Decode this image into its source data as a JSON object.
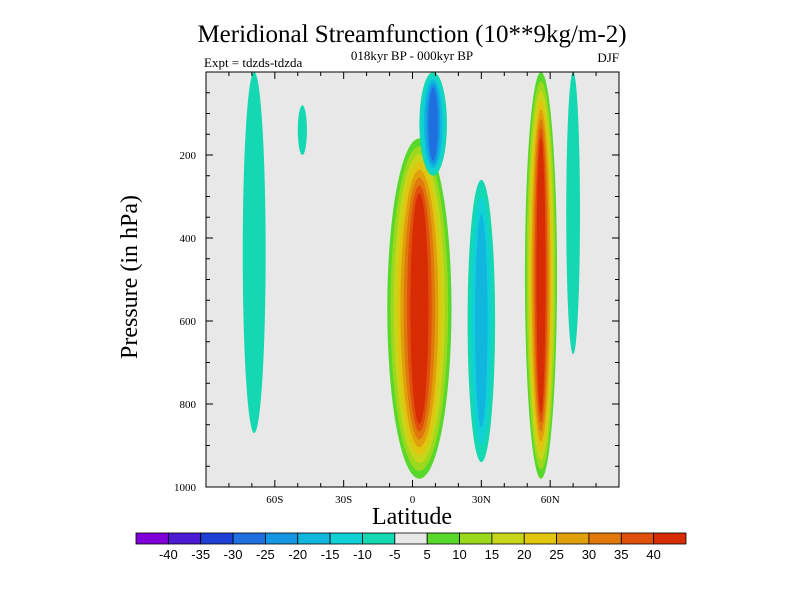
{
  "chart_data": {
    "type": "heatmap",
    "title": "Meridional Streamfunction (10**9kg/m-2)",
    "subtitle": "018kyr BP - 000kyr BP",
    "left_label": "Expt = tdzds-tdzda",
    "right_label": "DJF",
    "xlabel": "Latitude",
    "ylabel": "Pressure (in hPa)",
    "xlim": [
      -90,
      90
    ],
    "ylim": [
      0,
      1000
    ],
    "y_reversed": true,
    "x_ticks": [
      {
        "value": -60,
        "label": "60S"
      },
      {
        "value": -30,
        "label": "30S"
      },
      {
        "value": 0,
        "label": "0"
      },
      {
        "value": 30,
        "label": "30N"
      },
      {
        "value": 60,
        "label": "60N"
      }
    ],
    "y_ticks": [
      {
        "value": 200,
        "label": "200"
      },
      {
        "value": 400,
        "label": "400"
      },
      {
        "value": 600,
        "label": "600"
      },
      {
        "value": 800,
        "label": "800"
      },
      {
        "value": 1000,
        "label": "1000"
      }
    ],
    "background_color": "#e8e8e8",
    "colorbar": {
      "levels": [
        "-40",
        "-35",
        "-30",
        "-25",
        "-20",
        "-15",
        "-10",
        "-5",
        "5",
        "10",
        "15",
        "20",
        "25",
        "30",
        "35",
        "40"
      ],
      "colors": [
        "#7f00d8",
        "#4b1cd3",
        "#1f3fd6",
        "#1f6fe0",
        "#1496e2",
        "#10b6dd",
        "#10d1d6",
        "#14d8b2",
        "#e8e8e8",
        "#58d82a",
        "#9cd81c",
        "#c8d61a",
        "#e0c60e",
        "#e0a00c",
        "#e0780c",
        "#e0500c",
        "#d82c04"
      ]
    },
    "features": [
      {
        "name": "sh-polar-column",
        "lat": -69,
        "p_top": 0,
        "p_bottom": 870,
        "value": -8,
        "lat_width": 5
      },
      {
        "name": "sh-mid-blob",
        "lat": -48,
        "p_top": 80,
        "p_bottom": 200,
        "value": -6,
        "lat_width": 2
      },
      {
        "name": "equatorial-hadley-cell",
        "lat": 3,
        "p_top": 160,
        "p_bottom": 980,
        "value": 42,
        "lat_width": 14
      },
      {
        "name": "tropical-north-min",
        "lat": 9,
        "p_top": 0,
        "p_bottom": 250,
        "value": -28,
        "lat_width": 6
      },
      {
        "name": "sub-tropical-negative-column",
        "lat": 30,
        "p_top": 260,
        "p_bottom": 940,
        "value": -15,
        "lat_width": 6
      },
      {
        "name": "nh-ferrel-positive-column",
        "lat": 56,
        "p_top": 0,
        "p_bottom": 980,
        "value": 40,
        "lat_width": 7
      },
      {
        "name": "nh-polar-negative-column",
        "lat": 70,
        "p_top": 0,
        "p_bottom": 680,
        "value": -9,
        "lat_width": 3
      }
    ]
  }
}
